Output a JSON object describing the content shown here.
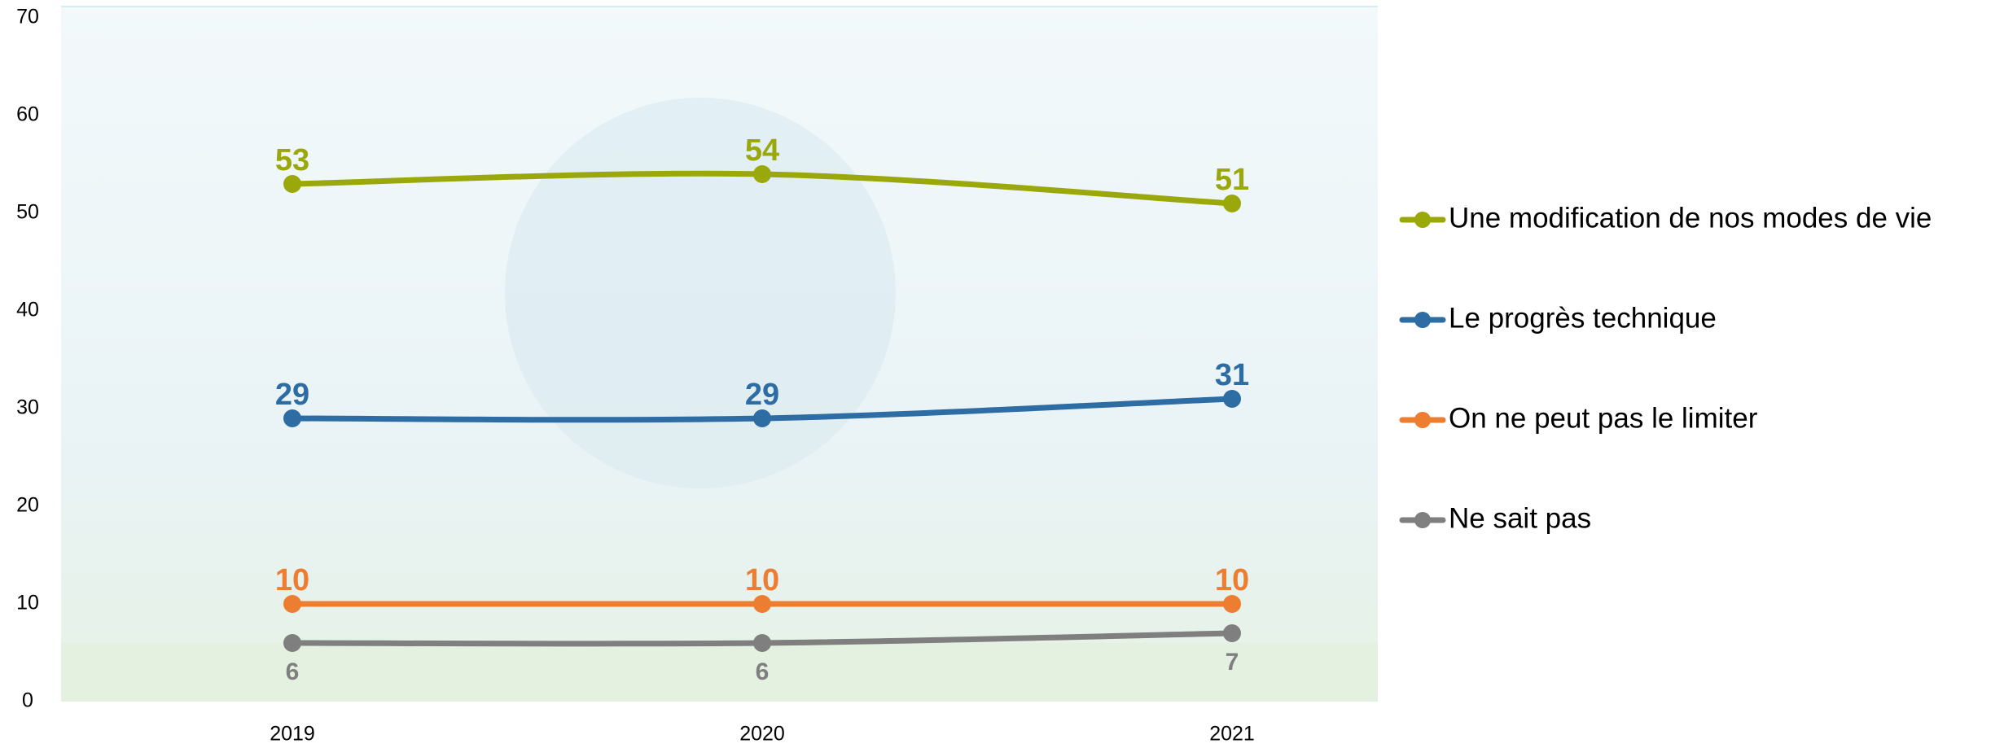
{
  "chart_data": {
    "type": "line",
    "categories": [
      "2019",
      "2020",
      "2021"
    ],
    "series": [
      {
        "name": "Une modification de nos modes de vie",
        "color": "#9aa80c",
        "values": [
          53,
          54,
          51
        ]
      },
      {
        "name": "Le progrès technique",
        "color": "#2e6ca4",
        "values": [
          29,
          29,
          31
        ]
      },
      {
        "name": "On ne peut pas le limiter",
        "color": "#ed7d31",
        "values": [
          10,
          10,
          10
        ]
      },
      {
        "name": "Ne sait pas",
        "color": "#7f7f7f",
        "values": [
          6,
          6,
          7
        ]
      }
    ],
    "ylim": [
      0,
      70
    ],
    "yticks": [
      0,
      10,
      20,
      30,
      40,
      50,
      60,
      70
    ],
    "grid": false,
    "legend": "right"
  }
}
